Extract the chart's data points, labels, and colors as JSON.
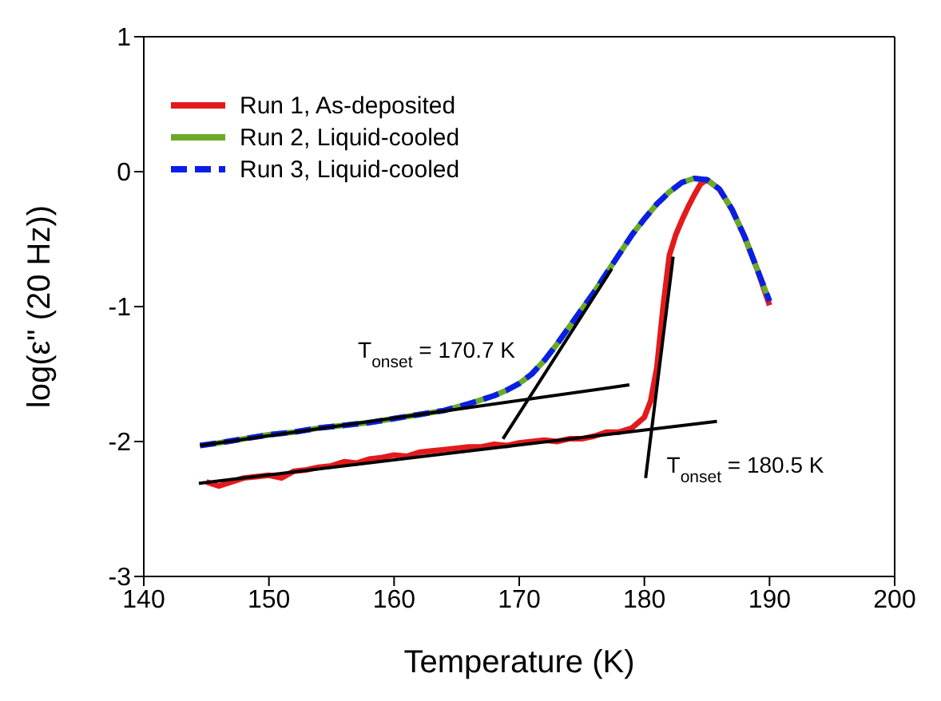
{
  "chart_data": {
    "type": "line",
    "xlabel": "Temperature (K)",
    "ylabel": "log(ε\" (20 Hz))",
    "xlim": [
      140,
      200
    ],
    "xticks": [
      140,
      150,
      160,
      170,
      180,
      190,
      200
    ],
    "ylim": [
      -3,
      1
    ],
    "yticks": [
      -3,
      -2,
      -1,
      0,
      1
    ],
    "legend": "top left",
    "marker": "none",
    "annotations": [
      {
        "text": "T$_{onset}$ = 170.7 K",
        "x": 170.7,
        "y": -1.71
      },
      {
        "text": "T$_{onset}$ = 180.5 K",
        "x": 180.5,
        "y": -1.9
      }
    ],
    "series": [
      {
        "name": "Run 1, As-deposited",
        "color": "#e31a1c",
        "line_style": "solid",
        "x": [
          145,
          146,
          147,
          148,
          149,
          150,
          151,
          152,
          153,
          154,
          155,
          156,
          157,
          158,
          159,
          160,
          161,
          162,
          163,
          164,
          165,
          166,
          167,
          168,
          169,
          170,
          171,
          172,
          173,
          174,
          175,
          176,
          177,
          178,
          179,
          180,
          180.5,
          181,
          181.5,
          182,
          182.5,
          183,
          183.5,
          184,
          184.5,
          185,
          186,
          187,
          188,
          189,
          190
        ],
        "values": [
          -2.3,
          -2.33,
          -2.3,
          -2.27,
          -2.26,
          -2.25,
          -2.27,
          -2.22,
          -2.21,
          -2.19,
          -2.18,
          -2.15,
          -2.16,
          -2.13,
          -2.12,
          -2.1,
          -2.11,
          -2.08,
          -2.07,
          -2.06,
          -2.05,
          -2.04,
          -2.04,
          -2.02,
          -2.03,
          -2.01,
          -2,
          -1.99,
          -2,
          -1.98,
          -1.98,
          -1.96,
          -1.93,
          -1.93,
          -1.9,
          -1.82,
          -1.7,
          -1.45,
          -1,
          -0.62,
          -0.47,
          -0.36,
          -0.26,
          -0.17,
          -0.09,
          -0.06,
          -0.13,
          -0.28,
          -0.48,
          -0.72,
          -0.99
        ]
      },
      {
        "name": "Run 2, Liquid-cooled",
        "color": "#6aaa2a",
        "line_style": "solid",
        "x": [
          144.5,
          146,
          148,
          150,
          152,
          154,
          156,
          158,
          160,
          162,
          164,
          166,
          167,
          168,
          169,
          170,
          171,
          172,
          173,
          174,
          175,
          176,
          177,
          178,
          179,
          180,
          181,
          182,
          183,
          184,
          185,
          186,
          187,
          188,
          189,
          190
        ],
        "values": [
          -2.03,
          -2.01,
          -1.98,
          -1.95,
          -1.93,
          -1.9,
          -1.88,
          -1.86,
          -1.83,
          -1.8,
          -1.77,
          -1.72,
          -1.69,
          -1.66,
          -1.62,
          -1.57,
          -1.5,
          -1.4,
          -1.28,
          -1.15,
          -1.02,
          -0.89,
          -0.75,
          -0.61,
          -0.47,
          -0.35,
          -0.24,
          -0.15,
          -0.08,
          -0.05,
          -0.06,
          -0.13,
          -0.28,
          -0.48,
          -0.72,
          -0.96
        ]
      },
      {
        "name": "Run 3, Liquid-cooled",
        "color": "#0a1ee6",
        "line_style": "dashed",
        "x": [
          144.5,
          146,
          148,
          150,
          152,
          154,
          156,
          158,
          160,
          162,
          164,
          166,
          167,
          168,
          169,
          170,
          171,
          172,
          173,
          174,
          175,
          176,
          177,
          178,
          179,
          180,
          181,
          182,
          183,
          184,
          185,
          186,
          187,
          188,
          189,
          190
        ],
        "values": [
          -2.03,
          -2.01,
          -1.98,
          -1.95,
          -1.93,
          -1.9,
          -1.88,
          -1.86,
          -1.83,
          -1.8,
          -1.77,
          -1.72,
          -1.69,
          -1.66,
          -1.62,
          -1.57,
          -1.5,
          -1.4,
          -1.28,
          -1.15,
          -1.02,
          -0.89,
          -0.75,
          -0.61,
          -0.47,
          -0.35,
          -0.24,
          -0.15,
          -0.08,
          -0.05,
          -0.06,
          -0.13,
          -0.28,
          -0.48,
          -0.72,
          -0.96
        ]
      },
      {
        "type": "line",
        "color": "#000000",
        "line_style": "solid",
        "x": [
          144.4,
          185.8
        ],
        "values": [
          -2.31,
          -1.85
        ]
      },
      {
        "type": "line",
        "color": "#000000",
        "line_style": "solid",
        "x": [
          144.5,
          178.8
        ],
        "values": [
          -2.03,
          -1.58
        ]
      },
      {
        "type": "line",
        "color": "#000000",
        "line_style": "solid",
        "x": [
          180.1,
          182.3
        ],
        "values": [
          -2.27,
          -0.63
        ]
      },
      {
        "type": "line",
        "color": "#000000",
        "line_style": "solid",
        "x": [
          168.7,
          177.4
        ],
        "values": [
          -1.98,
          -0.72
        ]
      }
    ]
  }
}
